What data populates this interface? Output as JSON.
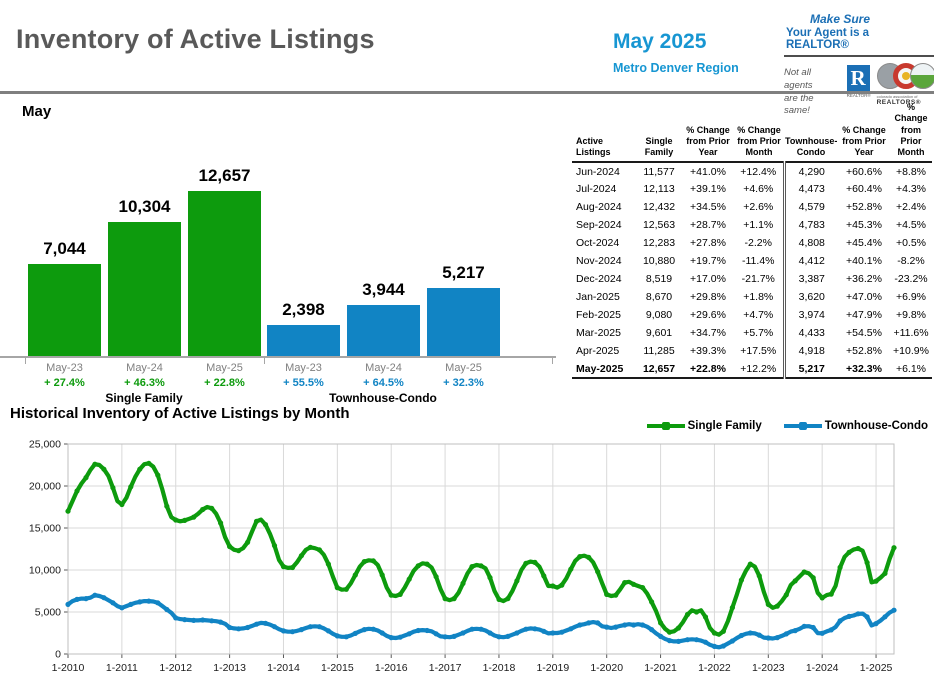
{
  "header": {
    "title": "Inventory of Active Listings",
    "period": "May 2025",
    "region": "Metro Denver Region",
    "brand": {
      "line1": "Make Sure",
      "line2": "Your Agent is a REALTOR®",
      "tagline1": "Not all agents",
      "tagline2": "are the same!",
      "realtor_r": "R",
      "realtor_caption": "REALTOR®",
      "car_caption_small": "colorado association of",
      "car_caption": "REALTORS®"
    }
  },
  "colors": {
    "accent_blue": "#1796D2",
    "title_gray": "#595959",
    "bar_green": "#0D9B0D",
    "bar_blue": "#1184C4",
    "axis_gray": "#7F7F7F",
    "brand_blue": "#1B6FB5"
  },
  "table": {
    "headers": [
      "Active Listings",
      "Single Family",
      "% Change from Prior Year",
      "% Change from Prior Month",
      "Townhouse-Condo",
      "% Change from Prior Year",
      "% Change from Prior Month"
    ],
    "rows": [
      [
        "Jun-2024",
        "11,577",
        "+41.0%",
        "+12.4%",
        "4,290",
        "+60.6%",
        "+8.8%"
      ],
      [
        "Jul-2024",
        "12,113",
        "+39.1%",
        "+4.6%",
        "4,473",
        "+60.4%",
        "+4.3%"
      ],
      [
        "Aug-2024",
        "12,432",
        "+34.5%",
        "+2.6%",
        "4,579",
        "+52.8%",
        "+2.4%"
      ],
      [
        "Sep-2024",
        "12,563",
        "+28.7%",
        "+1.1%",
        "4,783",
        "+45.3%",
        "+4.5%"
      ],
      [
        "Oct-2024",
        "12,283",
        "+27.8%",
        "-2.2%",
        "4,808",
        "+45.4%",
        "+0.5%"
      ],
      [
        "Nov-2024",
        "10,880",
        "+19.7%",
        "-11.4%",
        "4,412",
        "+40.1%",
        "-8.2%"
      ],
      [
        "Dec-2024",
        "8,519",
        "+17.0%",
        "-21.7%",
        "3,387",
        "+36.2%",
        "-23.2%"
      ],
      [
        "Jan-2025",
        "8,670",
        "+29.8%",
        "+1.8%",
        "3,620",
        "+47.0%",
        "+6.9%"
      ],
      [
        "Feb-2025",
        "9,080",
        "+29.6%",
        "+4.7%",
        "3,974",
        "+47.9%",
        "+9.8%"
      ],
      [
        "Mar-2025",
        "9,601",
        "+34.7%",
        "+5.7%",
        "4,433",
        "+54.5%",
        "+11.6%"
      ],
      [
        "Apr-2025",
        "11,285",
        "+39.3%",
        "+17.5%",
        "4,918",
        "+52.8%",
        "+10.9%"
      ],
      [
        "May-2025",
        "12,657",
        "+22.8%",
        "+12.2%",
        "5,217",
        "+32.3%",
        "+6.1%"
      ]
    ],
    "bold_last_row_cells": [
      0,
      1,
      2,
      4,
      5
    ]
  },
  "chart_data": [
    {
      "type": "bar",
      "title": "May",
      "categories": [
        "May-23",
        "May-24",
        "May-25",
        "May-23",
        "May-24",
        "May-25"
      ],
      "values": [
        7044,
        10304,
        12657,
        2398,
        3944,
        5217
      ],
      "labels": [
        "7,044",
        "10,304",
        "12,657",
        "2,398",
        "3,944",
        "5,217"
      ],
      "pct_change": [
        "+ 27.4%",
        "+ 46.3%",
        "+ 22.8%",
        "+ 55.5%",
        "+ 64.5%",
        "+ 32.3%"
      ],
      "bar_colors": [
        "green",
        "green",
        "green",
        "blue",
        "blue",
        "blue"
      ],
      "group_labels": [
        "Single Family",
        "Townhouse-Condo"
      ],
      "ylim": [
        0,
        13000
      ],
      "grid": false
    },
    {
      "type": "line",
      "title": "Historical Inventory of Active Listings by Month",
      "legend": [
        "Single Family",
        "Townhouse-Condo"
      ],
      "legend_position": "top-right",
      "grid": true,
      "ylim": [
        0,
        25000
      ],
      "ytick_step": 5000,
      "ytick_labels": [
        "0",
        "5,000",
        "10,000",
        "15,000",
        "20,000",
        "25,000"
      ],
      "xtick_labels": [
        "1-2010",
        "1-2011",
        "1-2012",
        "1-2013",
        "1-2014",
        "1-2015",
        "1-2016",
        "1-2017",
        "1-2018",
        "1-2019",
        "1-2020",
        "1-2021",
        "1-2022",
        "1-2023",
        "1-2024",
        "1-2025"
      ],
      "x_months_start": "1-2010",
      "x_months_end": "5-2025",
      "series": [
        {
          "name": "Single Family",
          "color_key": "green",
          "values": [
            17000,
            18200,
            19400,
            20300,
            21000,
            21900,
            22600,
            22500,
            22000,
            21200,
            19800,
            18200,
            17800,
            18600,
            19900,
            21100,
            22000,
            22600,
            22700,
            22300,
            21300,
            19600,
            17600,
            16300,
            15950,
            15800,
            15900,
            16100,
            16300,
            16700,
            17200,
            17500,
            17350,
            16700,
            15600,
            13900,
            12800,
            12400,
            12300,
            12600,
            13300,
            14600,
            15800,
            16000,
            15400,
            14300,
            12900,
            11200,
            10400,
            10250,
            10300,
            10900,
            11700,
            12400,
            12700,
            12600,
            12400,
            11800,
            10700,
            9200,
            7900,
            7650,
            7700,
            8400,
            9400,
            10400,
            11000,
            11150,
            11100,
            10600,
            9400,
            7900,
            7000,
            6900,
            7100,
            7900,
            8900,
            9900,
            10500,
            10800,
            10700,
            10300,
            9200,
            7700,
            6600,
            6400,
            6600,
            7300,
            8400,
            9600,
            10400,
            10600,
            10500,
            10200,
            9100,
            7500,
            6500,
            6300,
            6600,
            7500,
            8700,
            10000,
            10800,
            11000,
            10900,
            10400,
            9300,
            8100,
            8100,
            7900,
            8200,
            9000,
            10100,
            11100,
            11600,
            11700,
            11500,
            10900,
            9800,
            8400,
            7100,
            6900,
            7000,
            7700,
            8500,
            8600,
            8300,
            8100,
            7900,
            7200,
            6200,
            5100,
            3700,
            3000,
            2600,
            2700,
            3100,
            3800,
            4700,
            5200,
            5000,
            5200,
            4400,
            3100,
            2500,
            2300,
            2700,
            3900,
            5529,
            7100,
            8800,
            9900,
            10700,
            10400,
            9300,
            7400,
            5900,
            5500,
            5700,
            6300,
            7044,
            8211,
            8708,
            9243,
            9762,
            9611,
            9089,
            7281,
            6680,
            7006,
            7128,
            8102,
            10304,
            11577,
            12113,
            12432,
            12563,
            12283,
            10880,
            8519,
            8670,
            9080,
            9601,
            11285,
            12657
          ]
        },
        {
          "name": "Townhouse-Condo",
          "color_key": "blue",
          "values": [
            5900,
            6300,
            6500,
            6600,
            6600,
            6700,
            7000,
            6900,
            6700,
            6400,
            6100,
            5700,
            5500,
            5700,
            5900,
            6100,
            6200,
            6300,
            6300,
            6250,
            6100,
            5700,
            5300,
            4900,
            4300,
            4150,
            4100,
            4050,
            4000,
            4000,
            4050,
            4000,
            3950,
            3900,
            3800,
            3600,
            3150,
            3050,
            3000,
            3050,
            3150,
            3350,
            3550,
            3700,
            3650,
            3500,
            3250,
            2950,
            2750,
            2650,
            2650,
            2750,
            2900,
            3100,
            3250,
            3300,
            3250,
            3050,
            2750,
            2400,
            2150,
            2050,
            2050,
            2200,
            2450,
            2700,
            2900,
            3000,
            2950,
            2800,
            2500,
            2150,
            1950,
            1900,
            2000,
            2200,
            2400,
            2650,
            2800,
            2850,
            2800,
            2700,
            2400,
            2100,
            2050,
            2000,
            2100,
            2300,
            2500,
            2750,
            2950,
            3000,
            2950,
            2800,
            2500,
            2200,
            2050,
            2000,
            2100,
            2300,
            2500,
            2750,
            2950,
            3050,
            3000,
            2900,
            2700,
            2450,
            2500,
            2500,
            2600,
            2800,
            3000,
            3250,
            3450,
            3550,
            3700,
            3800,
            3700,
            3300,
            3200,
            3100,
            3200,
            3350,
            3450,
            3550,
            3450,
            3550,
            3450,
            3250,
            2900,
            2450,
            2100,
            1800,
            1600,
            1500,
            1500,
            1600,
            1700,
            1750,
            1700,
            1600,
            1400,
            1100,
            900,
            800,
            950,
            1250,
            1542,
            1900,
            2200,
            2400,
            2500,
            2450,
            2250,
            1950,
            1900,
            1850,
            1950,
            2150,
            2398,
            2671,
            2789,
            2997,
            3292,
            3307,
            3149,
            2487,
            2463,
            2687,
            2869,
            3218,
            3944,
            4290,
            4473,
            4579,
            4783,
            4808,
            4412,
            3387,
            3620,
            3974,
            4433,
            4918,
            5217
          ]
        }
      ]
    }
  ]
}
